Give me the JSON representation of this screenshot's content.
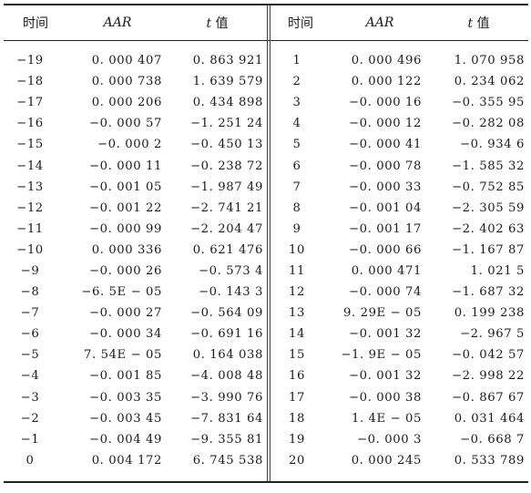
{
  "headers": {
    "time": "时间",
    "aar": "AAR",
    "t_italic": "t",
    "t_rest": " 值"
  },
  "left_rows": [
    {
      "time": "−19",
      "aar": "0. 000 407",
      "t": "0. 863 921"
    },
    {
      "time": "−18",
      "aar": "0. 000 738",
      "t": "1. 639 579"
    },
    {
      "time": "−17",
      "aar": "0. 000 206",
      "t": "0. 434 898"
    },
    {
      "time": "−16",
      "aar": "−0. 000 57",
      "t": "−1. 251 24"
    },
    {
      "time": "−15",
      "aar": "−0. 000 2",
      "t": "−0. 450 13"
    },
    {
      "time": "−14",
      "aar": "−0. 000 11",
      "t": "−0. 238 72"
    },
    {
      "time": "−13",
      "aar": "−0. 001 05",
      "t": "−1. 987 49"
    },
    {
      "time": "−12",
      "aar": "−0. 001 22",
      "t": "−2. 741 21"
    },
    {
      "time": "−11",
      "aar": "−0. 000 99",
      "t": "−2. 204 47"
    },
    {
      "time": "−10",
      "aar": "0. 000 336",
      "t": "0. 621 476"
    },
    {
      "time": "−9",
      "aar": "−0. 000 26",
      "t": "−0. 573 4"
    },
    {
      "time": "−8",
      "aar": "−6. 5E − 05",
      "t": "−0. 143 3"
    },
    {
      "time": "−7",
      "aar": "−0. 000 27",
      "t": "−0. 564 09"
    },
    {
      "time": "−6",
      "aar": "−0. 000 34",
      "t": "−0. 691 16"
    },
    {
      "time": "−5",
      "aar": "7. 54E − 05",
      "t": "0. 164 038"
    },
    {
      "time": "−4",
      "aar": "−0. 001 85",
      "t": "−4. 008 48"
    },
    {
      "time": "−3",
      "aar": "−0. 003 35",
      "t": "−3. 990 76"
    },
    {
      "time": "−2",
      "aar": "−0. 003 45",
      "t": "−7. 831 64"
    },
    {
      "time": "−1",
      "aar": "−0. 004 49",
      "t": "−9. 355 81"
    },
    {
      "time": "0",
      "aar": "0. 004 172",
      "t": "6. 745 538"
    }
  ],
  "right_rows": [
    {
      "time": "1",
      "aar": "0. 000 496",
      "t": "1. 070 958"
    },
    {
      "time": "2",
      "aar": "0. 000 122",
      "t": "0. 234 062"
    },
    {
      "time": "3",
      "aar": "−0. 000 16",
      "t": "−0. 355 95"
    },
    {
      "time": "4",
      "aar": "−0. 000 12",
      "t": "−0. 282 08"
    },
    {
      "time": "5",
      "aar": "−0. 000 41",
      "t": "−0. 934 6"
    },
    {
      "time": "6",
      "aar": "−0. 000 78",
      "t": "−1. 585 32"
    },
    {
      "time": "7",
      "aar": "−0. 000 33",
      "t": "−0. 752 85"
    },
    {
      "time": "8",
      "aar": "−0. 001 04",
      "t": "−2. 305 59"
    },
    {
      "time": "9",
      "aar": "−0. 001 17",
      "t": "−2. 402 63"
    },
    {
      "time": "10",
      "aar": "−0. 000 66",
      "t": "−1. 167 87"
    },
    {
      "time": "11",
      "aar": "0. 000 471",
      "t": "1. 021 5"
    },
    {
      "time": "12",
      "aar": "−0. 000 74",
      "t": "−1. 687 32"
    },
    {
      "time": "13",
      "aar": "9. 29E − 05",
      "t": "0. 199 238"
    },
    {
      "time": "14",
      "aar": "−0. 001 32",
      "t": "−2. 967 5"
    },
    {
      "time": "15",
      "aar": "−1. 9E − 05",
      "t": "−0. 042 57"
    },
    {
      "time": "16",
      "aar": "−0. 001 32",
      "t": "−2. 998 22"
    },
    {
      "time": "17",
      "aar": "−0. 000 38",
      "t": "−0. 867 67"
    },
    {
      "time": "18",
      "aar": "1. 4E − 05",
      "t": "0. 031 464"
    },
    {
      "time": "19",
      "aar": "−0. 000 3",
      "t": "−0. 668 7"
    },
    {
      "time": "20",
      "aar": "0. 000 245",
      "t": "0. 533 789"
    }
  ]
}
